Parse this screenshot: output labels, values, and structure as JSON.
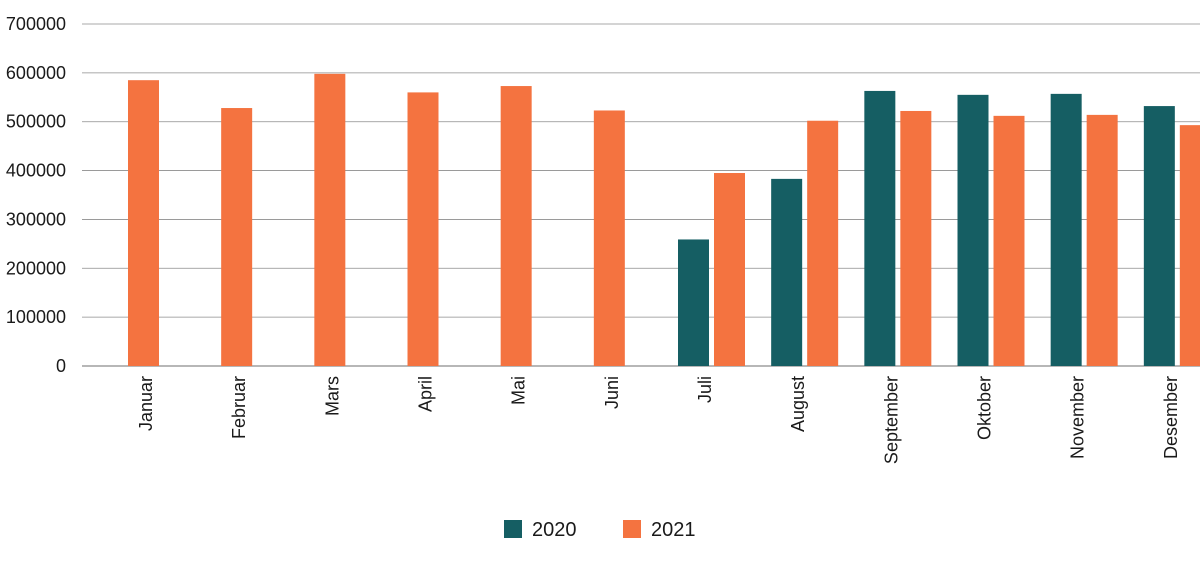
{
  "chart_data": {
    "type": "bar",
    "title": "",
    "xlabel": "",
    "ylabel": "",
    "ylim": [
      0,
      700000
    ],
    "yticks": [
      0,
      100000,
      200000,
      300000,
      400000,
      500000,
      600000,
      700000
    ],
    "grid": true,
    "legend_position": "bottom-center",
    "categories": [
      "Januar",
      "Februar",
      "Mars",
      "April",
      "Mai",
      "Juni",
      "Juli",
      "August",
      "September",
      "Oktober",
      "November",
      "Desember"
    ],
    "series": [
      {
        "name": "2020",
        "color": "#155e63",
        "values": [
          null,
          null,
          null,
          null,
          null,
          null,
          259000,
          383000,
          563000,
          555000,
          557000,
          532000
        ]
      },
      {
        "name": "2021",
        "color": "#f47340",
        "values": [
          585000,
          528000,
          598000,
          560000,
          573000,
          523000,
          395000,
          502000,
          522000,
          512000,
          514000,
          493000
        ]
      }
    ]
  }
}
